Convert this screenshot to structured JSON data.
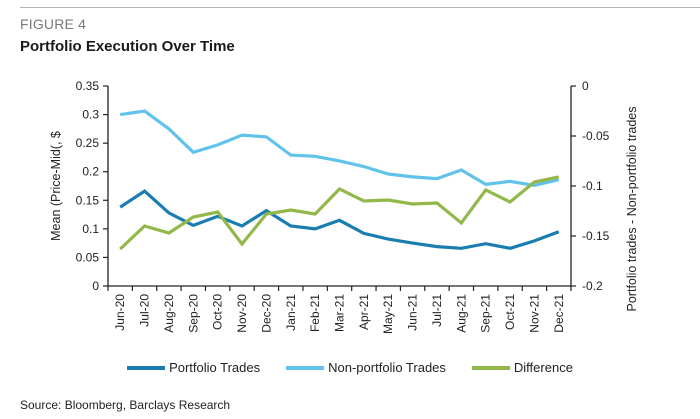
{
  "figure_label": "FIGURE 4",
  "title": "Portfolio Execution Over Time",
  "source": "Source: Bloomberg, Barclays Research",
  "colors": {
    "portfolio": "#1a7db0",
    "non_portfolio": "#62c3ea",
    "difference": "#93b84a",
    "axis": "#222222"
  },
  "chart_data": {
    "type": "line",
    "title": "Portfolio Execution Over Time",
    "xlabel": "",
    "ylabel": "Mean (Price-Mid(, $",
    "y2label": "Portfolio trades - Non-portfolio trades",
    "ylim": [
      0,
      0.35
    ],
    "y2lim": [
      -0.2,
      0
    ],
    "yticks": [
      "0",
      "0.05",
      "0.1",
      "0.15",
      "0.2",
      "0.25",
      "0.3",
      "0.35"
    ],
    "y2ticks": [
      "-0.2",
      "-0.15",
      "-0.1",
      "-0.05",
      "0"
    ],
    "grid": false,
    "legend_position": "bottom",
    "categories": [
      "Jun-20",
      "Jul-20",
      "Aug-20",
      "Sep-20",
      "Oct-20",
      "Nov-20",
      "Dec-20",
      "Jan-21",
      "Feb-21",
      "Mar-21",
      "Apr-21",
      "May-21",
      "Jun-21",
      "Jul-21",
      "Aug-21",
      "Sep-21",
      "Oct-21",
      "Nov-21",
      "Dec-21"
    ],
    "series": [
      {
        "name": "Portfolio Trades",
        "axis": "left",
        "color": "#1a7db0",
        "values": [
          0.138,
          0.166,
          0.128,
          0.106,
          0.122,
          0.105,
          0.132,
          0.105,
          0.1,
          0.115,
          0.092,
          0.082,
          0.075,
          0.069,
          0.066,
          0.074,
          0.066,
          0.079,
          0.095
        ]
      },
      {
        "name": "Non-portfolio Trades",
        "axis": "left",
        "color": "#62c3ea",
        "values": [
          0.3,
          0.306,
          0.275,
          0.234,
          0.247,
          0.264,
          0.261,
          0.229,
          0.227,
          0.219,
          0.209,
          0.196,
          0.191,
          0.188,
          0.203,
          0.178,
          0.183,
          0.176,
          0.186
        ]
      },
      {
        "name": "Difference",
        "axis": "right",
        "color": "#93b84a",
        "values": [
          -0.163,
          -0.14,
          -0.147,
          -0.131,
          -0.126,
          -0.158,
          -0.128,
          -0.124,
          -0.128,
          -0.103,
          -0.115,
          -0.114,
          -0.118,
          -0.117,
          -0.137,
          -0.104,
          -0.116,
          -0.096,
          -0.091
        ]
      }
    ]
  }
}
